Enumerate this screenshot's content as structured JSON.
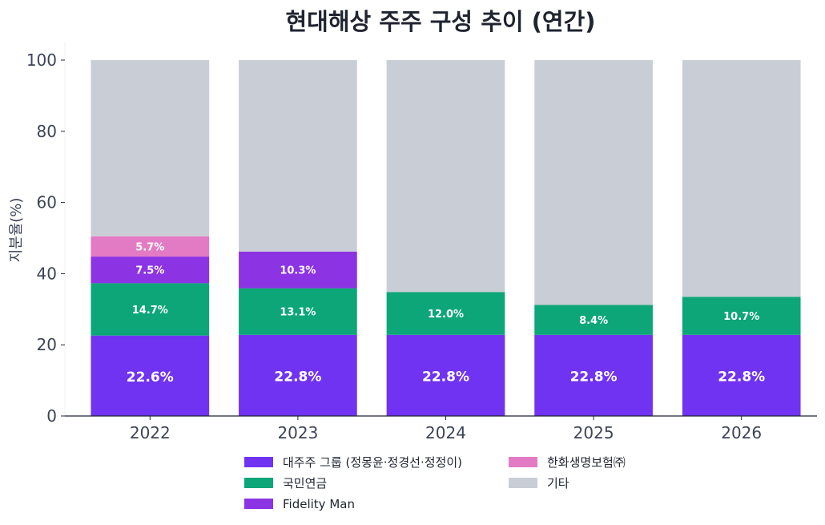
{
  "chart_data": {
    "type": "bar",
    "stacked": true,
    "title": "현대해상 주주 구성 추이 (연간)",
    "xlabel": "",
    "ylabel": "지분율(%)",
    "ylim": [
      0,
      105
    ],
    "yticks": [
      0,
      20,
      40,
      60,
      80,
      100
    ],
    "grid": false,
    "legend_position": "bottom",
    "categories": [
      "2022",
      "2023",
      "2024",
      "2025",
      "2026"
    ],
    "series": [
      {
        "name": "대주주 그룹 (정몽윤·정경선·정정이)",
        "color": "#7133f2",
        "values": [
          22.6,
          22.8,
          22.8,
          22.8,
          22.8
        ],
        "labels": [
          "22.6%",
          "22.8%",
          "22.8%",
          "22.8%",
          "22.8%"
        ]
      },
      {
        "name": "국민연금",
        "color": "#0ca678",
        "values": [
          14.7,
          13.1,
          12.0,
          8.4,
          10.7
        ],
        "labels": [
          "14.7%",
          "13.1%",
          "12.0%",
          "8.4%",
          "10.7%"
        ]
      },
      {
        "name": "Fidelity Man",
        "color": "#8c33e3",
        "values": [
          7.5,
          10.3,
          0,
          0,
          0
        ],
        "labels": [
          "7.5%",
          "10.3%",
          "",
          "",
          ""
        ]
      },
      {
        "name": "한화생명보험㈜",
        "color": "#e37bc4",
        "values": [
          5.7,
          0,
          0,
          0,
          0
        ],
        "labels": [
          "5.7%",
          "",
          "",
          "",
          ""
        ]
      },
      {
        "name": "기타",
        "color": "#c9cdd6",
        "values": [
          49.5,
          53.8,
          65.2,
          68.8,
          66.5
        ],
        "labels": [
          "",
          "",
          "",
          "",
          ""
        ]
      }
    ]
  }
}
